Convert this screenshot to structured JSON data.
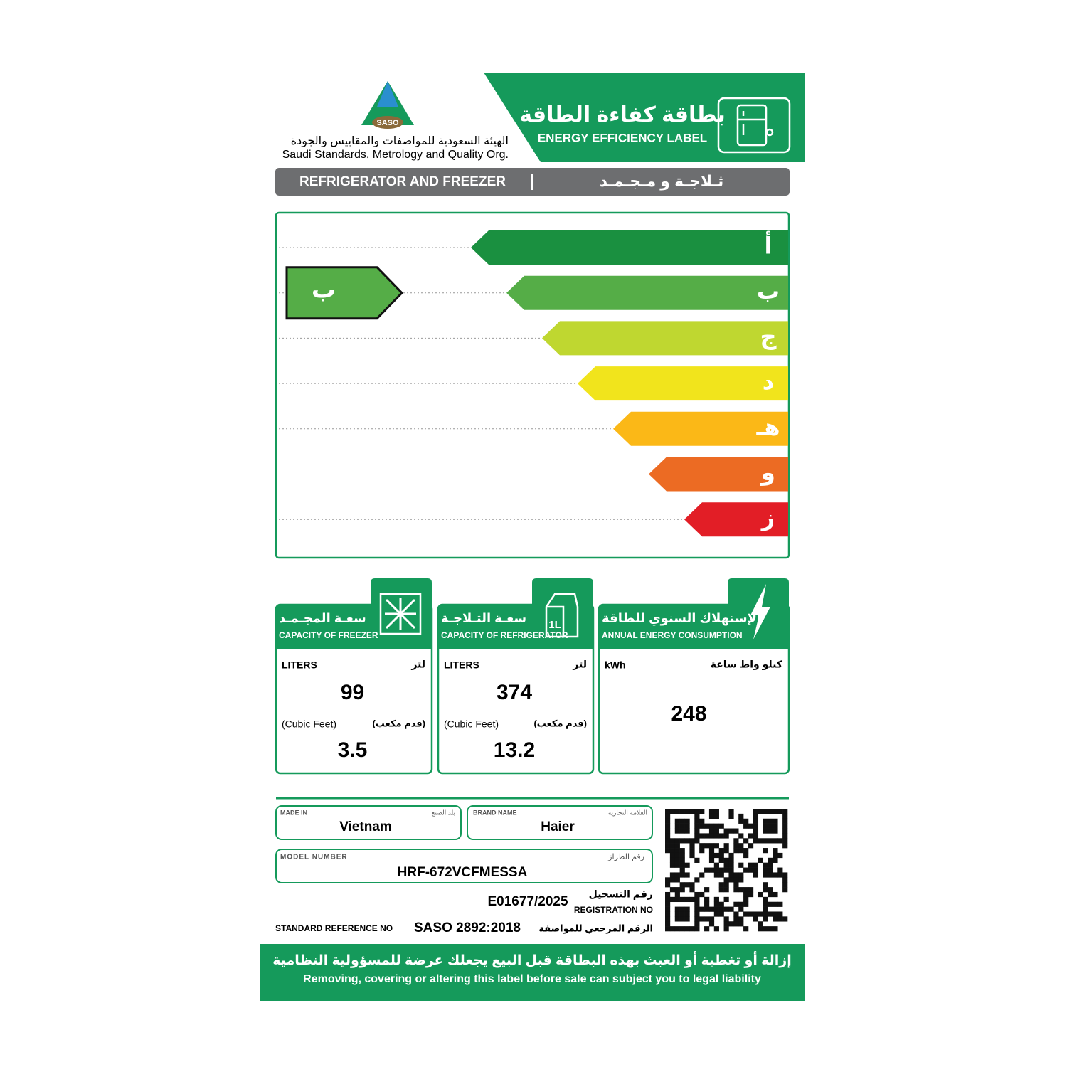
{
  "header": {
    "title_ar": "بطاقة كفاءة الطاقة",
    "title_en": "ENERGY EFFICIENCY LABEL",
    "logo": "SASO",
    "org_ar": "الهيئة السعودية للمواصفات والمقاييس والجودة",
    "org_en": "Saudi Standards, Metrology and Quality Org."
  },
  "product": {
    "name_en": "REFRIGERATOR AND FREEZER",
    "name_ar": "ثـلاجـة و مـجـمـد"
  },
  "rating": {
    "classes": [
      "أ",
      "ب",
      "ج",
      "د",
      "هـ",
      "و",
      "ز"
    ],
    "colors": [
      "#1a9040",
      "#55ad47",
      "#bfd730",
      "#f1e41c",
      "#fbb817",
      "#ec6b23",
      "#e21e26"
    ],
    "current": "ب"
  },
  "panels": [
    {
      "title_ar": "سعـة المجـمـد",
      "title_en": "CAPACITY OF FREEZER",
      "unit_en": "LITERS",
      "unit_ar": "لتر",
      "value": 99,
      "cubic_en": "(Cubic Feet)",
      "cubic_ar": "(قدم مكعب)",
      "cubic": 3.5
    },
    {
      "title_ar": "سعـة الثـلاجـة",
      "title_en": "CAPACITY OF REFRIGERATOR",
      "icon": "1L",
      "unit_en": "LITERS",
      "unit_ar": "لتر",
      "value": 374,
      "cubic_en": "(Cubic Feet)",
      "cubic_ar": "(قدم مكعب)",
      "cubic": 13.2
    },
    {
      "title_ar": "الإستهلاك السنوي للطاقة",
      "title_en": "ANNUAL ENERGY CONSUMPTION",
      "unit_en": "kWh",
      "unit_ar": "كيلو واط ساعة",
      "value": 248
    }
  ],
  "info": {
    "made_in_label": "MADE IN",
    "made_in_label_ar": "بلد الصنع",
    "made_in": "Vietnam",
    "brand_label": "BRAND NAME",
    "brand_label_ar": "العلامة التجارية",
    "brand": "Haier",
    "model_label": "MODEL NUMBER",
    "model_label_ar": "رقم الطراز",
    "model": "HRF-672VCFMESSA",
    "registration_no": "E01677/2025",
    "registration_label_ar": "رقم التسجيل",
    "registration_label_en": "REGISTRATION NO",
    "standard_label_en": "STANDARD REFERENCE NO",
    "standard": "SASO 2892:2018",
    "standard_label_ar": "الرقم المرجعي للمواصفة"
  },
  "footer": {
    "text_ar": "إزالة أو تغطية أو العبث بهذه البطاقة قبل البيع يجعلك عرضة للمسؤولية النظامية",
    "text_en": "Removing, covering or altering this label before sale can subject you to legal liability"
  }
}
